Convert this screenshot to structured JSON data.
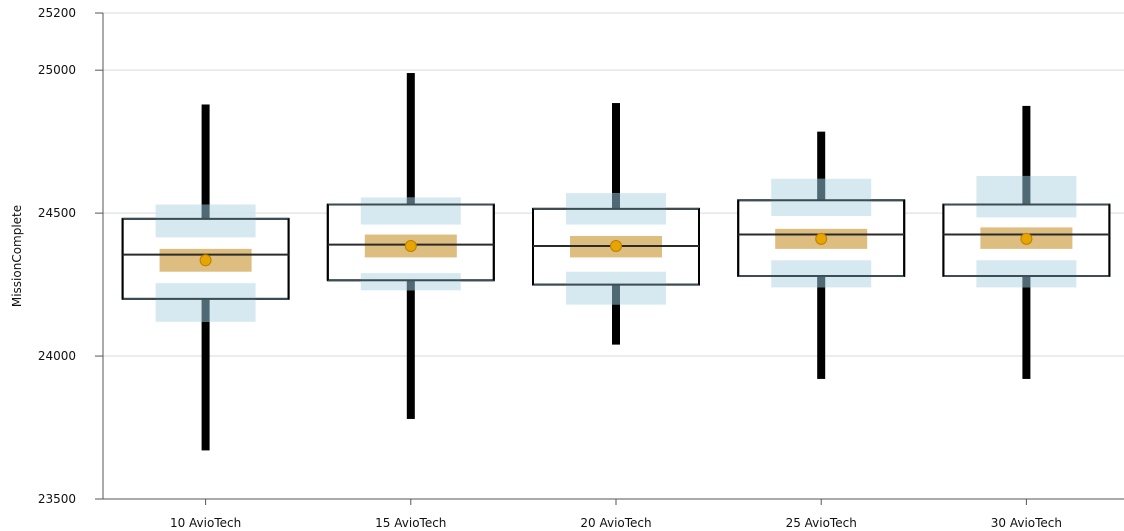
{
  "chart_data": {
    "type": "boxplot",
    "title": "",
    "xlabel": "",
    "ylabel": "MissionComplete",
    "ylim": [
      23500,
      25200
    ],
    "yticks": [
      23500,
      24000,
      24500,
      25000,
      25200
    ],
    "grid": true,
    "categories": [
      "10 AvioTech",
      "15 AvioTech",
      "20 AvioTech",
      "25 AvioTech",
      "30 AvioTech"
    ],
    "boxes": [
      {
        "category": "10 AvioTech",
        "whisker_low": 23670,
        "q1": 24200,
        "median": 24355,
        "q3": 24480,
        "whisker_high": 24880,
        "mean": 24335,
        "mean_ci": [
          24295,
          24375
        ],
        "q1_ci": [
          24120,
          24255
        ],
        "q3_ci": [
          24415,
          24530
        ]
      },
      {
        "category": "15 AvioTech",
        "whisker_low": 23780,
        "q1": 24265,
        "median": 24390,
        "q3": 24530,
        "whisker_high": 24990,
        "mean": 24385,
        "mean_ci": [
          24345,
          24425
        ],
        "q1_ci": [
          24230,
          24290
        ],
        "q3_ci": [
          24460,
          24555
        ]
      },
      {
        "category": "20 AvioTech",
        "whisker_low": 24040,
        "q1": 24250,
        "median": 24385,
        "q3": 24515,
        "whisker_high": 24885,
        "mean": 24385,
        "mean_ci": [
          24345,
          24420
        ],
        "q1_ci": [
          24180,
          24295
        ],
        "q3_ci": [
          24460,
          24570
        ]
      },
      {
        "category": "25 AvioTech",
        "whisker_low": 23920,
        "q1": 24280,
        "median": 24425,
        "q3": 24545,
        "whisker_high": 24785,
        "mean": 24410,
        "mean_ci": [
          24375,
          24445
        ],
        "q1_ci": [
          24240,
          24335
        ],
        "q3_ci": [
          24490,
          24620
        ]
      },
      {
        "category": "30 AvioTech",
        "whisker_low": 23920,
        "q1": 24280,
        "median": 24425,
        "q3": 24530,
        "whisker_high": 24875,
        "mean": 24410,
        "mean_ci": [
          24375,
          24450
        ],
        "q1_ci": [
          24240,
          24335
        ],
        "q3_ci": [
          24485,
          24630
        ]
      }
    ],
    "colors": {
      "whisker": "#000000",
      "box_stroke": "#000000",
      "quartile_ci": "#cfe5ee",
      "mean_ci": "#dcb979",
      "mean_marker": "#e8a400",
      "mean_marker_stroke": "#b97f00",
      "grid": "#d9d9d9",
      "axis": "#555555"
    }
  }
}
